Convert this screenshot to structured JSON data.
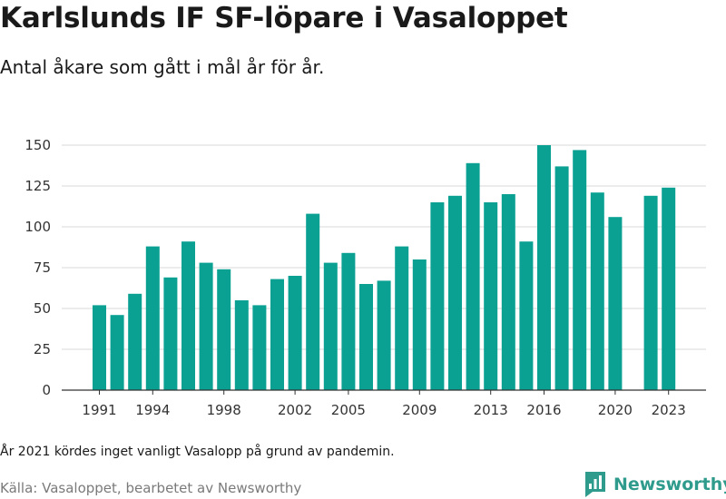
{
  "header": {
    "title": "Karlslunds IF SF-löpare i Vasaloppet",
    "subtitle": "Antal åkare som gått i mål år för år."
  },
  "footer": {
    "note": "År 2021 kördes inget vanligt Vasalopp på grund av pandemin.",
    "source": "Källa: Vasaloppet, bearbetet av Newsworthy",
    "brand": "Newsworthy",
    "brand_icon": "newsworthy-logo-icon"
  },
  "colors": {
    "bar": "#0aa193",
    "grid": "#d9d9d9",
    "axis": "#333333",
    "brand": "#2e9b8c"
  },
  "chart_data": {
    "type": "bar",
    "title": "",
    "xlabel": "",
    "ylabel": "",
    "categories": [
      1991,
      1992,
      1993,
      1994,
      1995,
      1996,
      1997,
      1998,
      1999,
      2000,
      2001,
      2002,
      2003,
      2004,
      2005,
      2006,
      2007,
      2008,
      2009,
      2010,
      2011,
      2012,
      2013,
      2014,
      2015,
      2016,
      2017,
      2018,
      2019,
      2020,
      2021,
      2022,
      2023
    ],
    "values": [
      52,
      46,
      59,
      88,
      69,
      91,
      78,
      74,
      55,
      52,
      68,
      70,
      108,
      78,
      84,
      65,
      67,
      88,
      80,
      115,
      119,
      139,
      115,
      120,
      91,
      150,
      137,
      147,
      121,
      106,
      null,
      119,
      124
    ],
    "x_tick_labels": [
      "1991",
      "1994",
      "1998",
      "2002",
      "2005",
      "2009",
      "2013",
      "2016",
      "2020",
      "2023"
    ],
    "y_ticks": [
      0,
      25,
      50,
      75,
      100,
      125,
      150
    ],
    "ylim": [
      0,
      150
    ],
    "grid": "horizontal",
    "legend": "none"
  }
}
